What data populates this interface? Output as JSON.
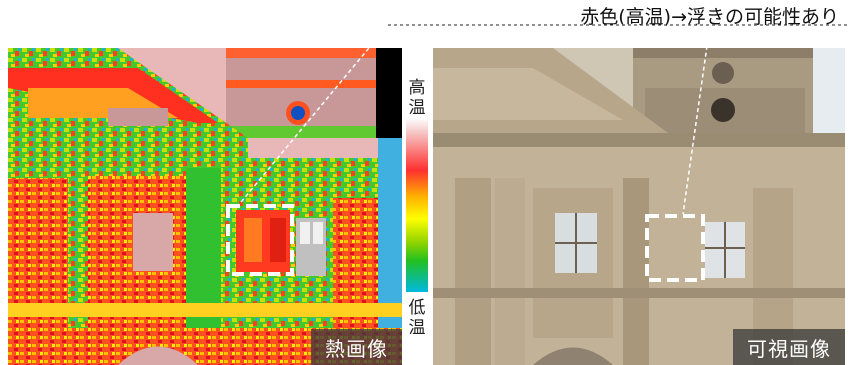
{
  "title": "赤色(高温)→浮きの可能性あり",
  "scale": {
    "high_label": "高温",
    "low_label": "低温"
  },
  "thermal_panel": {
    "caption": "熱画像"
  },
  "visible_panel": {
    "caption": "可視画像"
  },
  "colors": {
    "hot": "#ff2020",
    "cool": "#00b8e0",
    "stone": "#b8a58a"
  }
}
